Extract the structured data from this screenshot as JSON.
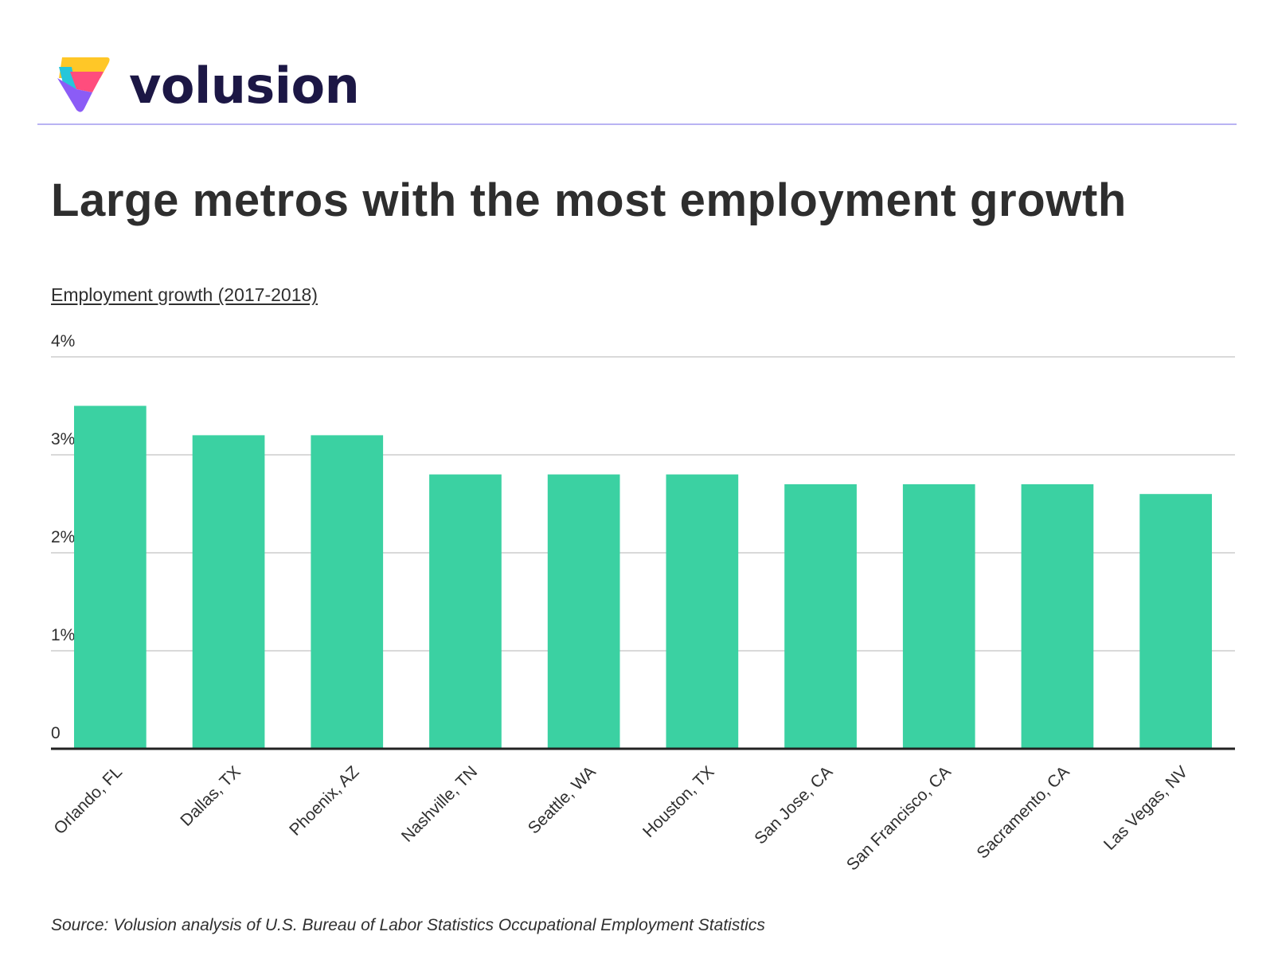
{
  "brand": {
    "name": "volusion",
    "logo_icon": "volusion-logo-icon",
    "colors": [
      "#ffc727",
      "#26c6da",
      "#ff4d7d",
      "#8b5cf6"
    ]
  },
  "header": {
    "title": "Large metros with the most employment growth"
  },
  "chart_data": {
    "type": "bar",
    "ylabel": "Employment growth (2017-2018)",
    "categories": [
      "Orlando, FL",
      "Dallas, TX",
      "Phoenix, AZ",
      "Nashville, TN",
      "Seattle, WA",
      "Houston, TX",
      "San Jose, CA",
      "San Francisco, CA",
      "Sacramento, CA",
      "Las Vegas, NV"
    ],
    "values": [
      3.5,
      3.2,
      3.2,
      2.8,
      2.8,
      2.8,
      2.7,
      2.7,
      2.7,
      2.6
    ],
    "ylim": [
      0,
      4
    ],
    "yticks": [
      0,
      1,
      2,
      3,
      4
    ],
    "ytick_labels": [
      "0",
      "1%",
      "2%",
      "3%",
      "4%"
    ],
    "grid": true,
    "bar_color": "#3bd1a2",
    "gridline_color": "#d9d9d9",
    "axis_color": "#222222"
  },
  "footer": {
    "source": "Source: Volusion analysis of U.S. Bureau of Labor Statistics Occupational Employment Statistics"
  }
}
